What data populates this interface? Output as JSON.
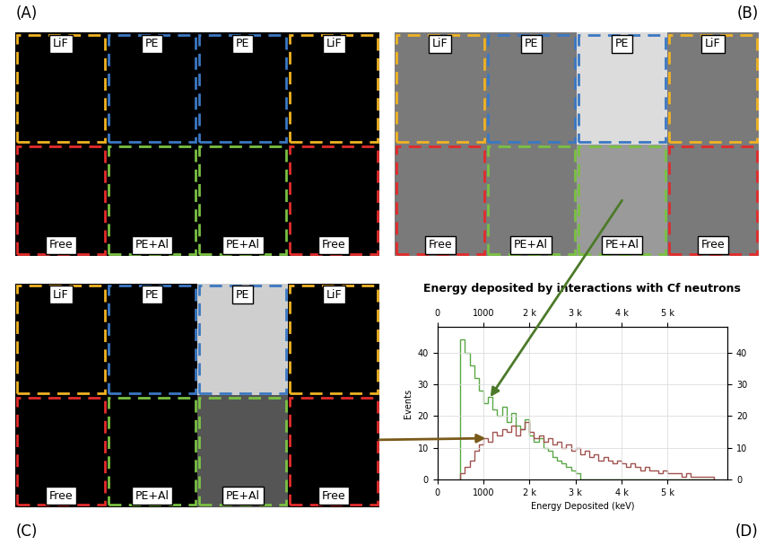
{
  "figure": {
    "image_panels": [
      {
        "label": "(A)",
        "top_row": [
          "LiF",
          "PE",
          "PE",
          "LiF"
        ],
        "bottom_row": [
          "Free",
          "PE+Al",
          "PE+Al",
          "Free"
        ]
      },
      {
        "label": "(B)",
        "top_row": [
          "LiF",
          "PE",
          "PE",
          "LiF"
        ],
        "bottom_row": [
          "Free",
          "PE+Al",
          "PE+Al",
          "Free"
        ]
      },
      {
        "label": "(C)",
        "top_row": [
          "LiF",
          "PE",
          "PE",
          "LiF"
        ],
        "bottom_row": [
          "Free",
          "PE+Al",
          "PE+Al",
          "Free"
        ]
      }
    ],
    "chart_label": "(D)"
  },
  "chart_data": {
    "type": "histogram",
    "title": "Energy deposited by interactions with Cf neutrons",
    "x_label": "Energy Deposited (keV)",
    "y_label": "Events",
    "bins": [
      500,
      600,
      700,
      800,
      900,
      1000,
      1100,
      1200,
      1300,
      1400,
      1500,
      1600,
      1700,
      1800,
      1900,
      2000,
      2100,
      2200,
      2300,
      2400,
      2500,
      2600,
      2700,
      2800,
      2900,
      3000,
      3100,
      3200,
      3300,
      3400,
      3500,
      3600,
      3700,
      3800,
      3900,
      4000,
      4100,
      4200,
      4300,
      4400,
      4500,
      4600,
      4700,
      4800,
      4900,
      5000,
      5100,
      5200,
      5300,
      5400,
      5500,
      5600,
      5700,
      5800,
      5900,
      6000
    ],
    "series": [
      {
        "color": "#5aa845",
        "values": [
          44,
          40,
          36,
          32,
          28,
          24,
          26,
          22,
          20,
          23,
          18,
          21,
          17,
          16,
          19,
          14,
          12,
          13,
          10,
          9,
          7,
          6,
          5,
          4,
          3,
          2,
          0,
          0,
          0,
          0,
          0,
          0,
          0,
          0,
          0,
          0,
          0,
          0,
          0,
          0,
          0,
          0,
          0,
          0,
          0,
          0,
          0,
          0,
          0,
          0,
          0,
          0,
          0,
          0,
          0
        ]
      },
      {
        "color": "#a0524f",
        "values": [
          2,
          4,
          6,
          9,
          11,
          13,
          12,
          15,
          14,
          16,
          15,
          17,
          14,
          16,
          18,
          15,
          13,
          14,
          12,
          13,
          11,
          12,
          10,
          11,
          9,
          10,
          8,
          9,
          7,
          8,
          6,
          7,
          6,
          5,
          6,
          5,
          4,
          5,
          4,
          3,
          4,
          3,
          3,
          2,
          3,
          2,
          2,
          2,
          1,
          2,
          1,
          1,
          1,
          1,
          1
        ]
      }
    ],
    "xlim": [
      0,
      6300
    ],
    "xticks": [
      0,
      1000,
      {
        "value": 2000,
        "label": "2 k"
      },
      {
        "value": 3000,
        "label": "3 k"
      },
      {
        "value": 4000,
        "label": "4 k"
      },
      {
        "value": 5000,
        "label": "5 k"
      }
    ],
    "ylim": [
      0,
      48
    ],
    "yticks": [
      0,
      10,
      20,
      30,
      40
    ],
    "grid": true
  }
}
